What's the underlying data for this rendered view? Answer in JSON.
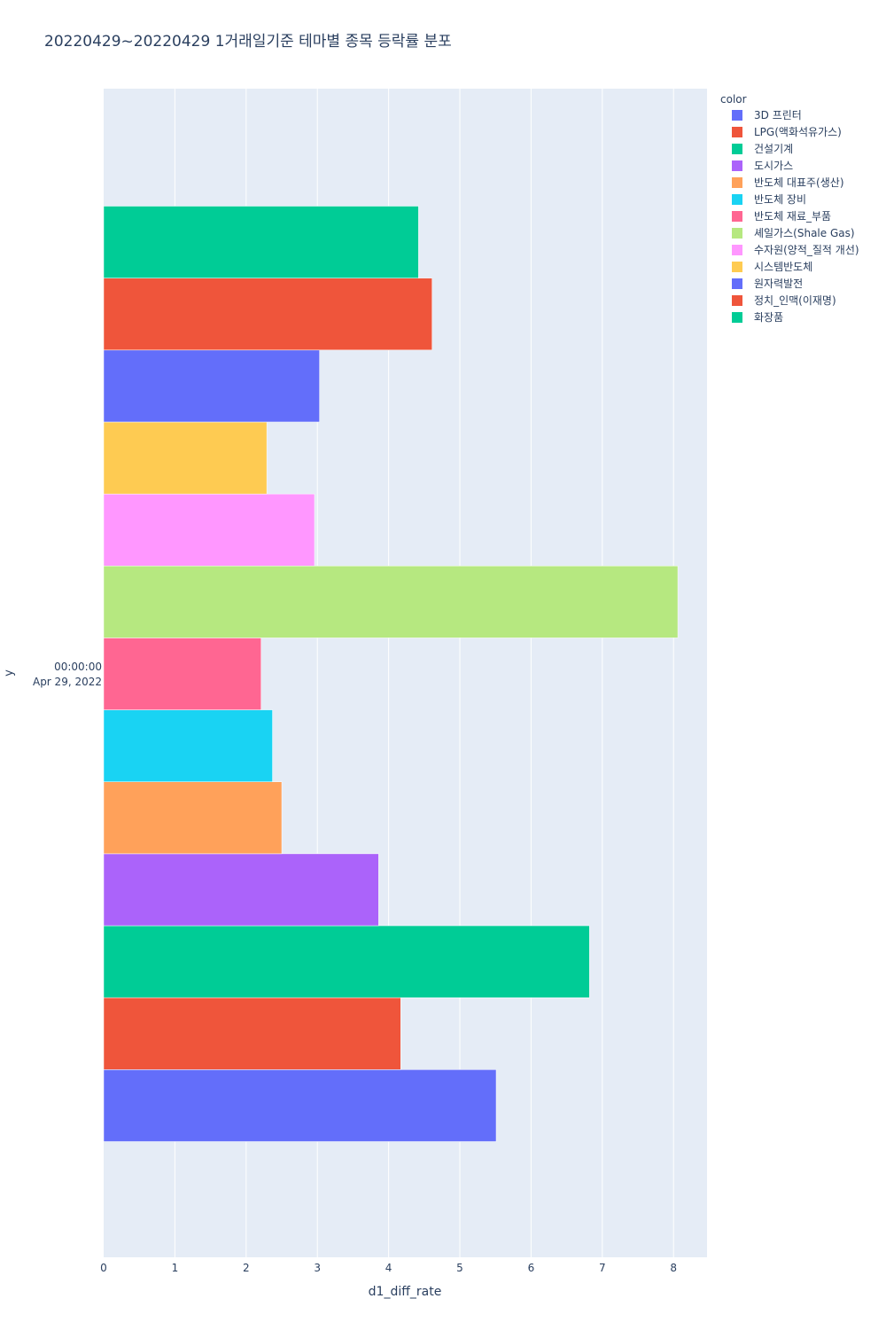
{
  "chart_data": {
    "type": "bar",
    "orientation": "horizontal",
    "barmode": "group",
    "title": "20220429~20220429 1거래일기준 테마별 종목 등락률 분포",
    "xlabel": "d1_diff_rate",
    "ylabel": "y",
    "xlim": [
      0,
      8.47
    ],
    "xticks": [
      "0",
      "1",
      "2",
      "3",
      "4",
      "5",
      "6",
      "7",
      "8"
    ],
    "y_category": {
      "time": "00:00:00",
      "date": "Apr 29, 2022"
    },
    "legend_title": "color",
    "legend_position": "top-right",
    "grid": true,
    "series": [
      {
        "name": "3D 프린터",
        "color": "#636efa",
        "value": 5.51
      },
      {
        "name": "LPG(액화석유가스)",
        "color": "#EF553B",
        "value": 4.17
      },
      {
        "name": "건설기계",
        "color": "#00cc96",
        "value": 6.82
      },
      {
        "name": "도시가스",
        "color": "#ab63fa",
        "value": 3.86
      },
      {
        "name": "반도체 대표주(생산)",
        "color": "#FFA15A",
        "value": 2.5
      },
      {
        "name": "반도체 장비",
        "color": "#19d3f3",
        "value": 2.37
      },
      {
        "name": "반도체 재료_부품",
        "color": "#FF6692",
        "value": 2.21
      },
      {
        "name": "셰일가스(Shale Gas)",
        "color": "#B6E880",
        "value": 8.06
      },
      {
        "name": "수자원(양적_질적 개선)",
        "color": "#FF97FF",
        "value": 2.96
      },
      {
        "name": "시스템반도체",
        "color": "#FECB52",
        "value": 2.29
      },
      {
        "name": "원자력발전",
        "color": "#636efa",
        "value": 3.03
      },
      {
        "name": "정치_인맥(이재명)",
        "color": "#EF553B",
        "value": 4.61
      },
      {
        "name": "화장품",
        "color": "#00cc96",
        "value": 4.42
      }
    ]
  }
}
